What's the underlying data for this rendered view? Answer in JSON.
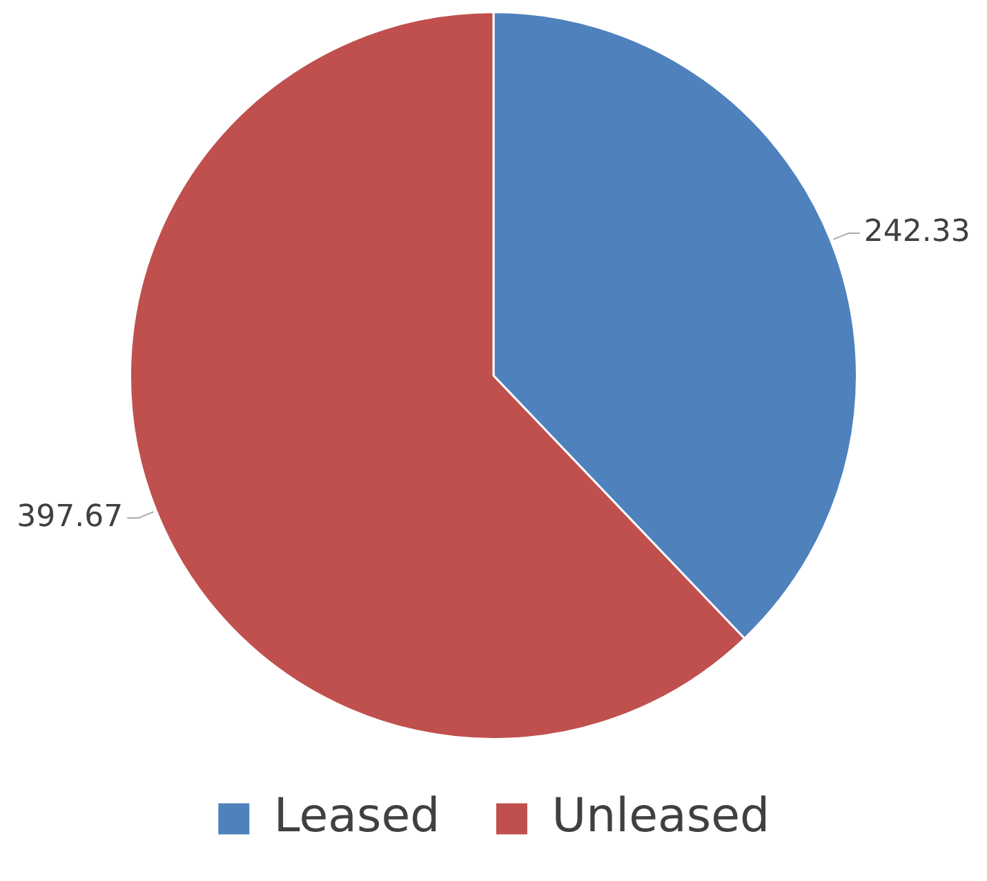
{
  "chart_data": {
    "type": "pie",
    "categories": [
      "Leased",
      "Unleased"
    ],
    "values": [
      242.33,
      397.67
    ],
    "colors": [
      "#4f81bd",
      "#c0504d"
    ],
    "data_labels": true,
    "legend": "bottom"
  }
}
